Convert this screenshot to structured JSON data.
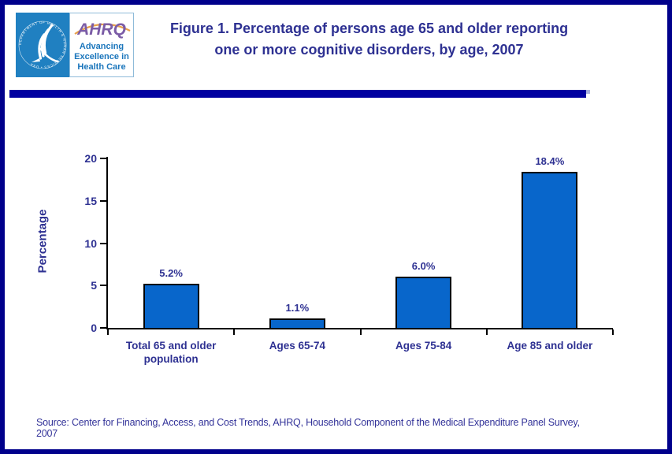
{
  "header": {
    "title_line1": "Figure 1. Percentage of persons age 65 and older reporting",
    "title_line2": "one or more cognitive disorders, by age, 2007",
    "logo": {
      "hhs_seal_text": "DEPARTMENT OF HEALTH & HUMAN SERVICES • USA",
      "ahrq_acronym": "AHRQ",
      "tagline_lines": [
        "Advancing",
        "Excellence in",
        "Health Care"
      ]
    }
  },
  "chart_data": {
    "type": "bar",
    "title": "Figure 1. Percentage of persons age 65 and older reporting one or more cognitive disorders, by age, 2007",
    "categories": [
      "Total 65 and older population",
      "Ages 65-74",
      "Ages 75-84",
      "Age 85 and older"
    ],
    "values": [
      5.2,
      1.1,
      6.0,
      18.4
    ],
    "value_labels": [
      "5.2%",
      "1.1%",
      "6.0%",
      "18.4%"
    ],
    "xlabel": "",
    "ylabel": "Percentage",
    "ylim": [
      0,
      20
    ],
    "yticks": [
      0,
      5,
      10,
      15,
      20
    ],
    "grid": false,
    "legend": false,
    "bar_color": "#0866CB",
    "bar_border_color": "#000000"
  },
  "footer": {
    "source_line1": "Source: Center for Financing, Access, and Cost Trends, AHRQ, Household Component of the Medical Expenditure Panel Survey,",
    "source_line2": "2007"
  },
  "colors": {
    "page_border": "#00008B",
    "divider": "#0000A0",
    "text_navy": "#2E3192",
    "hhs_blue": "#2080C1",
    "ahrq_purple": "#7B5CA6",
    "arc_orange": "#E8A04B",
    "tagline_blue": "#1B76BC"
  }
}
